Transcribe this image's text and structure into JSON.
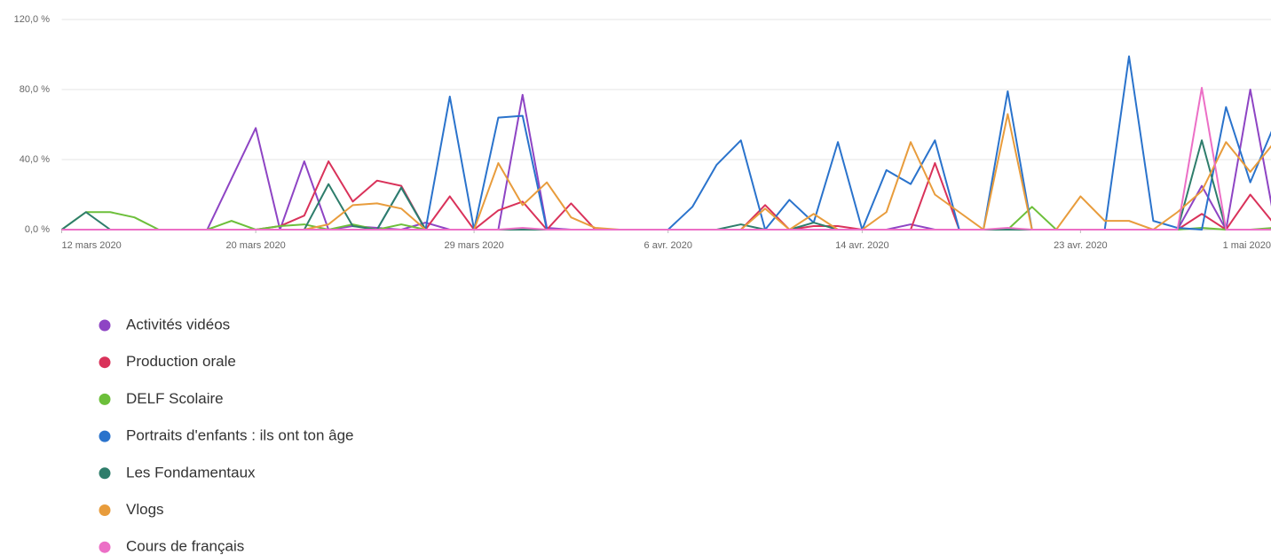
{
  "chart_data": {
    "type": "line",
    "x": [
      "2020-03-12",
      "2020-03-13",
      "2020-03-14",
      "2020-03-15",
      "2020-03-16",
      "2020-03-17",
      "2020-03-18",
      "2020-03-19",
      "2020-03-20",
      "2020-03-21",
      "2020-03-22",
      "2020-03-23",
      "2020-03-24",
      "2020-03-25",
      "2020-03-26",
      "2020-03-27",
      "2020-03-28",
      "2020-03-29",
      "2020-03-30",
      "2020-03-31",
      "2020-04-01",
      "2020-04-02",
      "2020-04-03",
      "2020-04-04",
      "2020-04-05",
      "2020-04-06",
      "2020-04-07",
      "2020-04-08",
      "2020-04-09",
      "2020-04-10",
      "2020-04-11",
      "2020-04-12",
      "2020-04-13",
      "2020-04-14",
      "2020-04-15",
      "2020-04-16",
      "2020-04-17",
      "2020-04-18",
      "2020-04-19",
      "2020-04-20",
      "2020-04-21",
      "2020-04-22",
      "2020-04-23",
      "2020-04-24",
      "2020-04-25",
      "2020-04-26",
      "2020-04-27",
      "2020-04-28",
      "2020-04-29",
      "2020-04-30",
      "2020-05-01"
    ],
    "xlim": [
      "2020-03-12",
      "2020-05-01"
    ],
    "xticks": [
      {
        "value": "2020-03-12",
        "label": "12 mars 2020"
      },
      {
        "value": "2020-03-20",
        "label": "20 mars 2020"
      },
      {
        "value": "2020-03-29",
        "label": "29 mars 2020"
      },
      {
        "value": "2020-04-06",
        "label": "6 avr. 2020"
      },
      {
        "value": "2020-04-14",
        "label": "14 avr. 2020"
      },
      {
        "value": "2020-04-23",
        "label": "23 avr. 2020"
      },
      {
        "value": "2020-05-01",
        "label": "1 mai 2020"
      }
    ],
    "ylim": [
      0,
      120
    ],
    "yticks": [
      {
        "value": 0,
        "label": "0,0 %"
      },
      {
        "value": 40,
        "label": "40,0 %"
      },
      {
        "value": 80,
        "label": "80,0 %"
      },
      {
        "value": 120,
        "label": "120,0 %"
      }
    ],
    "grid": true,
    "series": [
      {
        "name": "Activités vidéos",
        "color": "#8e44c4",
        "values": [
          0,
          0,
          0,
          0,
          0,
          0,
          0,
          29,
          58,
          0,
          39,
          0,
          2,
          1,
          0,
          4,
          0,
          0,
          0,
          77,
          1,
          0,
          0,
          0,
          0,
          0,
          0,
          0,
          0,
          0,
          0,
          0,
          0,
          0,
          0,
          3,
          0,
          0,
          0,
          0,
          0,
          0,
          0,
          0,
          0,
          0,
          0,
          25,
          0,
          80,
          5
        ]
      },
      {
        "name": "Production orale",
        "color": "#d9325a",
        "values": [
          0,
          0,
          0,
          0,
          0,
          0,
          0,
          0,
          0,
          2,
          8,
          39,
          16,
          28,
          25,
          0,
          19,
          0,
          11,
          16,
          0,
          15,
          0,
          0,
          0,
          0,
          0,
          0,
          0,
          14,
          0,
          2,
          2,
          0,
          0,
          0,
          38,
          0,
          0,
          0,
          0,
          0,
          0,
          0,
          0,
          0,
          0,
          9,
          0,
          20,
          3
        ]
      },
      {
        "name": "DELF Scolaire",
        "color": "#6cbf3a",
        "values": [
          0,
          10,
          10,
          7,
          0,
          0,
          0,
          5,
          0,
          2,
          3,
          0,
          3,
          0,
          3,
          0,
          0,
          0,
          0,
          0,
          0,
          0,
          0,
          0,
          0,
          0,
          0,
          0,
          0,
          0,
          0,
          0,
          0,
          0,
          0,
          0,
          0,
          0,
          0,
          0,
          13,
          0,
          0,
          0,
          0,
          0,
          0,
          1,
          0,
          0,
          1
        ]
      },
      {
        "name": "Portraits d'enfants : ils ont ton âge",
        "color": "#2a73cc",
        "values": [
          0,
          0,
          0,
          0,
          0,
          0,
          0,
          0,
          0,
          0,
          0,
          0,
          0,
          0,
          24,
          0,
          76,
          0,
          64,
          65,
          0,
          0,
          0,
          0,
          0,
          0,
          13,
          37,
          51,
          0,
          17,
          4,
          50,
          0,
          34,
          26,
          51,
          0,
          0,
          79,
          0,
          0,
          0,
          0,
          99,
          5,
          1,
          0,
          70,
          27,
          60
        ]
      },
      {
        "name": "Les Fondamentaux",
        "color": "#2e7d6b",
        "values": [
          0,
          10,
          0,
          0,
          0,
          0,
          0,
          0,
          0,
          0,
          0,
          26,
          2,
          0,
          24,
          0,
          0,
          0,
          0,
          0,
          0,
          0,
          0,
          0,
          0,
          0,
          0,
          0,
          3,
          0,
          0,
          4,
          0,
          0,
          0,
          0,
          0,
          0,
          0,
          0,
          0,
          0,
          0,
          0,
          0,
          0,
          0,
          51,
          0,
          0,
          0
        ]
      },
      {
        "name": "Vlogs",
        "color": "#e89c3c",
        "values": [
          0,
          0,
          0,
          0,
          0,
          0,
          0,
          0,
          0,
          0,
          0,
          3,
          14,
          15,
          12,
          0,
          0,
          0,
          38,
          14,
          27,
          7,
          1,
          0,
          0,
          0,
          0,
          0,
          0,
          12,
          0,
          9,
          0,
          0,
          10,
          50,
          20,
          10,
          0,
          66,
          0,
          0,
          19,
          5,
          5,
          0,
          10,
          22,
          50,
          33,
          50
        ]
      },
      {
        "name": "Cours de français",
        "color": "#ec6fc6",
        "values": [
          0,
          0,
          0,
          0,
          0,
          0,
          0,
          0,
          0,
          0,
          0,
          0,
          0,
          0,
          0,
          0,
          0,
          0,
          0,
          1,
          0,
          0,
          0,
          0,
          0,
          0,
          0,
          0,
          0,
          0,
          0,
          0,
          0,
          0,
          0,
          0,
          0,
          0,
          0,
          1,
          0,
          0,
          0,
          0,
          0,
          0,
          0,
          81,
          0,
          0,
          0
        ]
      }
    ]
  }
}
